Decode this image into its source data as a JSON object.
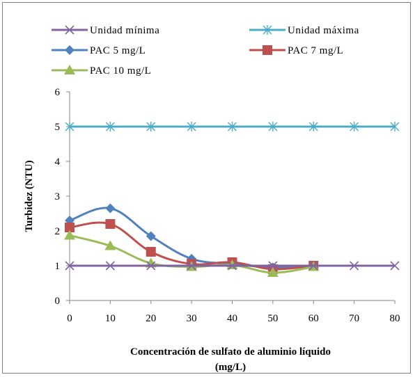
{
  "chart_data": {
    "type": "line",
    "xlabel_line1": "Concentración de sulfato de aluminio líquido",
    "xlabel_line2": "(mg/L)",
    "ylabel": "Turbidez (NTU)",
    "xlim": [
      0,
      80
    ],
    "ylim": [
      0,
      6
    ],
    "xticks": [
      "0",
      "10",
      "20",
      "30",
      "40",
      "50",
      "60",
      "70",
      "80"
    ],
    "yticks": [
      "0",
      "1",
      "2",
      "3",
      "4",
      "5",
      "6"
    ],
    "grid": false,
    "legend_position": "top",
    "series": [
      {
        "name": "Unidad mínima",
        "color": "#8064a2",
        "marker": "x",
        "x": [
          0,
          10,
          20,
          30,
          40,
          50,
          60,
          70,
          80
        ],
        "y": [
          1,
          1,
          1,
          1,
          1,
          1,
          1,
          1,
          1
        ]
      },
      {
        "name": "Unidad máxima",
        "color": "#4bacc6",
        "marker": "star",
        "x": [
          0,
          10,
          20,
          30,
          40,
          50,
          60,
          70,
          80
        ],
        "y": [
          5,
          5,
          5,
          5,
          5,
          5,
          5,
          5,
          5
        ]
      },
      {
        "name": "PAC 5 mg/L",
        "color": "#4f81bd",
        "marker": "diamond",
        "x": [
          0,
          10,
          20,
          30,
          40,
          50,
          60
        ],
        "y": [
          2.3,
          2.65,
          1.85,
          1.2,
          1.05,
          0.95,
          1.0
        ]
      },
      {
        "name": "PAC 7 mg/L",
        "color": "#c0504d",
        "marker": "square",
        "x": [
          0,
          10,
          20,
          30,
          40,
          50,
          60
        ],
        "y": [
          2.1,
          2.2,
          1.4,
          1.05,
          1.1,
          0.9,
          1.0
        ]
      },
      {
        "name": "PAC 10 mg/L",
        "color": "#9bbb59",
        "marker": "triangle",
        "x": [
          0,
          10,
          20,
          30,
          40,
          50,
          60
        ],
        "y": [
          1.87,
          1.57,
          1.07,
          0.97,
          1.02,
          0.8,
          0.97
        ]
      }
    ]
  }
}
